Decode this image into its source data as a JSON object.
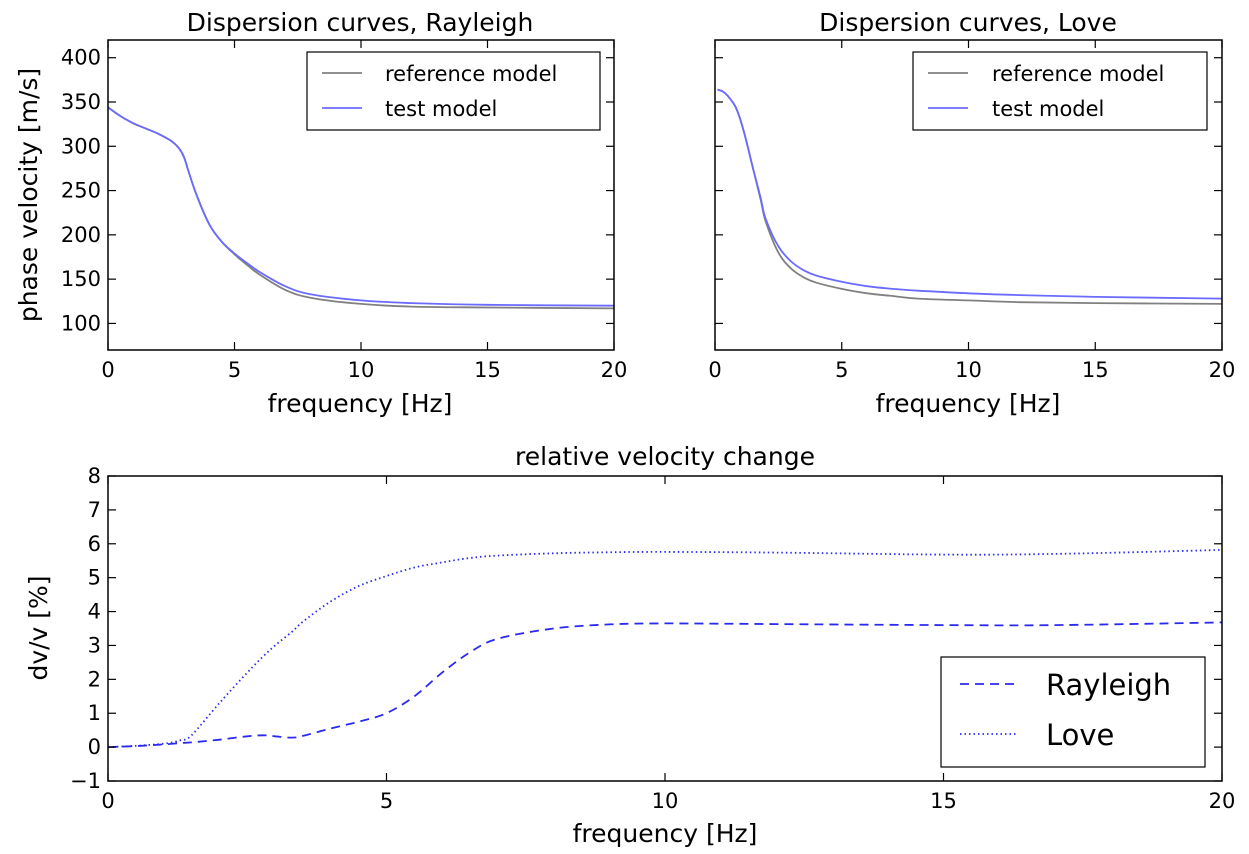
{
  "colors": {
    "reference": "#808080",
    "test": "#6b6bff",
    "dvv": "#2a2aee"
  },
  "chart_data": [
    {
      "type": "line",
      "title": "Dispersion curves, Rayleigh",
      "xlabel": "frequency [Hz]",
      "ylabel": "phase velocity [m/s]",
      "xlim": [
        0,
        20
      ],
      "ylim": [
        70,
        420
      ],
      "xticks": [
        "0",
        "5",
        "10",
        "15",
        "20"
      ],
      "yticks": [
        "100",
        "150",
        "200",
        "250",
        "300",
        "350",
        "400"
      ],
      "grid": false,
      "legend": "top-right",
      "x": [
        0,
        0.5,
        1,
        1.5,
        2,
        2.5,
        2.8,
        3,
        3.2,
        3.5,
        4,
        4.5,
        5,
        5.5,
        6,
        7,
        8,
        10,
        12,
        15,
        20
      ],
      "series": [
        {
          "name": "reference model",
          "values": [
            344,
            334,
            326,
            320,
            314,
            306,
            298,
            288,
            270,
            245,
            212,
            192,
            178,
            166,
            155,
            138,
            129,
            122,
            119,
            118,
            117
          ]
        },
        {
          "name": "test model",
          "values": [
            344,
            334,
            326,
            320,
            314,
            306,
            298,
            288,
            270,
            245,
            212,
            192,
            179,
            168,
            158,
            142,
            133,
            126,
            123,
            121,
            120
          ]
        }
      ]
    },
    {
      "type": "line",
      "title": "Dispersion curves, Love",
      "xlabel": "frequency [Hz]",
      "ylabel": "",
      "xlim": [
        0,
        20
      ],
      "ylim": [
        70,
        420
      ],
      "xticks": [
        "0",
        "5",
        "10",
        "15",
        "20"
      ],
      "yticks": [],
      "grid": false,
      "legend": "top-right",
      "x": [
        0.1,
        0.3,
        0.5,
        0.8,
        1,
        1.2,
        1.5,
        1.8,
        2,
        2.5,
        3,
        3.5,
        4,
        5,
        6,
        7,
        8,
        10,
        12,
        15,
        20
      ],
      "series": [
        {
          "name": "reference model",
          "values": [
            364,
            362,
            357,
            345,
            330,
            310,
            275,
            240,
            215,
            180,
            162,
            152,
            146,
            139,
            134,
            131,
            128,
            126,
            124,
            123,
            122
          ]
        },
        {
          "name": "test model",
          "values": [
            364,
            362,
            357,
            345,
            330,
            310,
            275,
            242,
            218,
            187,
            170,
            160,
            154,
            147,
            142,
            139,
            137,
            134,
            132,
            130,
            128
          ]
        }
      ]
    },
    {
      "type": "line",
      "title": "relative velocity change",
      "xlabel": "frequency [Hz]",
      "ylabel": "dv/v [%]",
      "xlim": [
        0,
        20
      ],
      "ylim": [
        -1,
        8
      ],
      "xticks": [
        "0",
        "5",
        "10",
        "15",
        "20"
      ],
      "yticks": [
        "−1",
        "0",
        "1",
        "2",
        "3",
        "4",
        "5",
        "6",
        "7",
        "8"
      ],
      "grid": false,
      "legend": "bottom-right",
      "x": [
        0,
        0.5,
        1,
        1.3,
        1.5,
        2,
        2.5,
        2.8,
        3,
        3.3,
        3.5,
        4,
        4.5,
        5,
        5.5,
        6,
        6.5,
        7,
        8,
        9,
        10,
        12,
        15,
        17,
        20
      ],
      "series": [
        {
          "name": "Rayleigh",
          "dash": "dashed",
          "values": [
            0,
            0.03,
            0.08,
            0.12,
            0.14,
            0.22,
            0.32,
            0.35,
            0.32,
            0.28,
            0.33,
            0.55,
            0.75,
            1.0,
            1.5,
            2.2,
            2.8,
            3.2,
            3.5,
            3.62,
            3.65,
            3.63,
            3.6,
            3.6,
            3.68
          ]
        },
        {
          "name": "Love",
          "dash": "dotted",
          "values": [
            0,
            0.04,
            0.1,
            0.2,
            0.35,
            1.3,
            2.2,
            2.7,
            3.0,
            3.4,
            3.7,
            4.3,
            4.75,
            5.05,
            5.3,
            5.45,
            5.58,
            5.65,
            5.72,
            5.75,
            5.76,
            5.74,
            5.68,
            5.7,
            5.82
          ]
        }
      ]
    }
  ]
}
